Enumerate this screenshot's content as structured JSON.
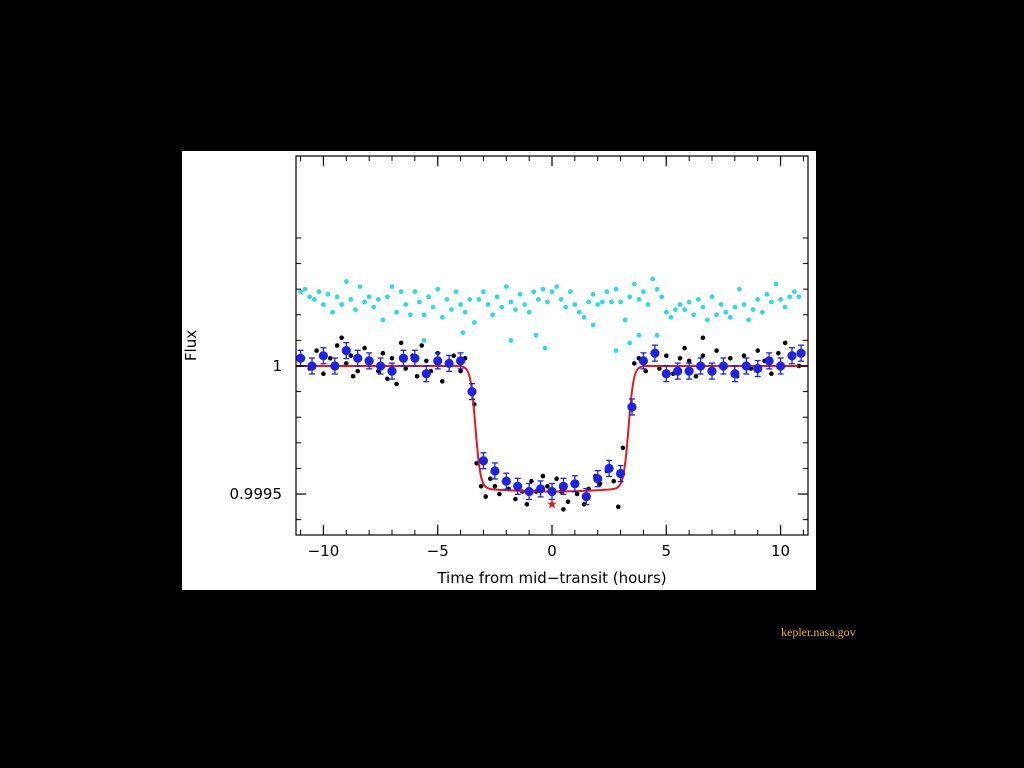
{
  "credit": "kepler.nasa.gov",
  "colors": {
    "background": "#000000",
    "panel": "#ffffff",
    "model": "#e31a1c",
    "binned": "#1f23e0",
    "unbinned": "#000000",
    "offset_series": "#2fd9e6",
    "star_marker": "#e31a1c",
    "credit_text": "#f2b21c"
  },
  "chart_data": {
    "type": "scatter",
    "title": "",
    "xlabel": "Time from mid−transit (hours)",
    "ylabel": "Flux",
    "xlim": [
      -11.2,
      11.2
    ],
    "ylim": [
      0.99934,
      1.00082
    ],
    "xticks": [
      -10,
      -5,
      0,
      5,
      10
    ],
    "xtick_labels": [
      "−10",
      "−5",
      "0",
      "5",
      "10"
    ],
    "yticks": [
      1,
      0.9995
    ],
    "ytick_labels": [
      "1",
      "0.9995"
    ],
    "grid": false,
    "legend": "none",
    "series": [
      {
        "kind": "offset_points",
        "points": [
          [
            -11.0,
            1.00029
          ],
          [
            -10.8,
            1.0003
          ],
          [
            -10.6,
            1.00027
          ],
          [
            -10.4,
            1.00026
          ],
          [
            -10.2,
            1.00029
          ],
          [
            -10.0,
            1.00024
          ],
          [
            -9.8,
            1.00028
          ],
          [
            -9.6,
            1.00021
          ],
          [
            -9.4,
            1.00027
          ],
          [
            -9.2,
            1.00024
          ],
          [
            -9.0,
            1.00033
          ],
          [
            -8.8,
            1.00026
          ],
          [
            -8.6,
            1.00022
          ],
          [
            -8.4,
            1.00031
          ],
          [
            -8.2,
            1.00025
          ],
          [
            -8.0,
            1.00027
          ],
          [
            -7.8,
            1.00023
          ],
          [
            -7.6,
            1.00026
          ],
          [
            -7.4,
            1.00018
          ],
          [
            -7.2,
            1.00027
          ],
          [
            -7.0,
            1.00031
          ],
          [
            -6.8,
            1.00021
          ],
          [
            -6.6,
            1.00029
          ],
          [
            -6.4,
            1.00024
          ],
          [
            -6.2,
            1.0002
          ],
          [
            -6.0,
            1.00029
          ],
          [
            -5.8,
            1.00025
          ],
          [
            -5.6,
            1.0002
          ],
          [
            -5.4,
            1.00027
          ],
          [
            -5.2,
            1.00023
          ],
          [
            -5.0,
            1.0003
          ],
          [
            -4.8,
            1.00019
          ],
          [
            -4.6,
            1.00026
          ],
          [
            -4.4,
            1.00022
          ],
          [
            -4.2,
            1.00029
          ],
          [
            -4.0,
            1.00024
          ],
          [
            -3.8,
            1.00021
          ],
          [
            -3.6,
            1.00026
          ],
          [
            -3.4,
            1.00017
          ],
          [
            -3.2,
            1.00026
          ],
          [
            -3.0,
            1.00029
          ],
          [
            -2.8,
            1.00024
          ],
          [
            -2.6,
            1.0002
          ],
          [
            -2.4,
            1.00027
          ],
          [
            -2.2,
            1.00023
          ],
          [
            -2.0,
            1.00031
          ],
          [
            -1.8,
            1.00025
          ],
          [
            -1.6,
            1.00022
          ],
          [
            -1.4,
            1.00028
          ],
          [
            -1.2,
            1.00024
          ],
          [
            -1.0,
            1.00021
          ],
          [
            -0.8,
            1.00029
          ],
          [
            -0.6,
            1.00026
          ],
          [
            -0.4,
            1.0003
          ],
          [
            -0.2,
            1.00025
          ],
          [
            0.0,
            1.00029
          ],
          [
            0.2,
            1.00031
          ],
          [
            0.4,
            1.00026
          ],
          [
            0.6,
            1.00023
          ],
          [
            0.8,
            1.00029
          ],
          [
            1.0,
            1.00024
          ],
          [
            1.2,
            1.00021
          ],
          [
            1.4,
            1.00019
          ],
          [
            1.6,
            1.00025
          ],
          [
            1.8,
            1.00028
          ],
          [
            2.0,
            1.00024
          ],
          [
            2.2,
            1.00025
          ],
          [
            2.4,
            1.00029
          ],
          [
            2.6,
            1.00025
          ],
          [
            2.8,
            1.0003
          ],
          [
            3.0,
            1.00025
          ],
          [
            3.2,
            1.00018
          ],
          [
            3.4,
            1.00027
          ],
          [
            3.6,
            1.00032
          ],
          [
            3.8,
            1.00026
          ],
          [
            4.0,
            1.00029
          ],
          [
            4.2,
            1.00024
          ],
          [
            4.4,
            1.00034
          ],
          [
            4.6,
            1.0003
          ],
          [
            4.8,
            1.00027
          ],
          [
            5.0,
            1.00021
          ],
          [
            5.2,
            1.00019
          ],
          [
            5.4,
            1.00022
          ],
          [
            5.6,
            1.00024
          ],
          [
            5.8,
            1.00022
          ],
          [
            6.0,
            1.00025
          ],
          [
            6.2,
            1.0002
          ],
          [
            6.4,
            1.00026
          ],
          [
            6.6,
            1.00023
          ],
          [
            6.8,
            1.00018
          ],
          [
            7.0,
            1.00027
          ],
          [
            7.2,
            1.0002
          ],
          [
            7.4,
            1.00024
          ],
          [
            7.6,
            1.00021
          ],
          [
            7.8,
            1.00019
          ],
          [
            8.0,
            1.00023
          ],
          [
            8.2,
            1.0003
          ],
          [
            8.4,
            1.00024
          ],
          [
            8.6,
            1.00018
          ],
          [
            8.8,
            1.00022
          ],
          [
            9.0,
            1.00026
          ],
          [
            9.2,
            1.00021
          ],
          [
            9.4,
            1.00028
          ],
          [
            9.6,
            1.00025
          ],
          [
            9.8,
            1.00032
          ],
          [
            10.0,
            1.00026
          ],
          [
            10.2,
            1.00023
          ],
          [
            10.4,
            1.00027
          ],
          [
            10.6,
            1.00029
          ],
          [
            10.8,
            1.00027
          ],
          [
            -5.6,
            1.0001
          ],
          [
            -1.8,
            1.0001
          ],
          [
            -0.3,
            1.00007
          ],
          [
            2.8,
            1.00006
          ],
          [
            3.4,
            1.00009
          ],
          [
            3.8,
            1.00012
          ],
          [
            -3.9,
            1.00013
          ],
          [
            4.6,
            1.00012
          ],
          [
            1.8,
            1.00016
          ],
          [
            -0.7,
            1.00012
          ]
        ]
      },
      {
        "kind": "unbinned_points",
        "points": [
          [
            -10.9,
            1.00003
          ],
          [
            -10.6,
            0.99999
          ],
          [
            -10.3,
            1.00006
          ],
          [
            -10.0,
            0.99997
          ],
          [
            -9.7,
            1.00003
          ],
          [
            -9.4,
            1.00008
          ],
          [
            -9.2,
            1.00011
          ],
          [
            -9.0,
            1.00001
          ],
          [
            -8.8,
            1.00004
          ],
          [
            -8.5,
            0.99998
          ],
          [
            -8.2,
            1.00007
          ],
          [
            -7.9,
            1.00002
          ],
          [
            -7.6,
            0.99998
          ],
          [
            -7.4,
            1.00005
          ],
          [
            -7.2,
            0.99995
          ],
          [
            -7.0,
            1.00003
          ],
          [
            -6.8,
            0.99993
          ],
          [
            -6.6,
            1.00009
          ],
          [
            -6.4,
            0.99999
          ],
          [
            -6.1,
            1.00004
          ],
          [
            -5.9,
            0.99996
          ],
          [
            -5.7,
            1.00008
          ],
          [
            -5.5,
            1.00002
          ],
          [
            -5.3,
            0.99998
          ],
          [
            -5.0,
            1.00005
          ],
          [
            -4.8,
            0.99994
          ],
          [
            -4.6,
            1.00001
          ],
          [
            -4.3,
            1.00004
          ],
          [
            -4.0,
            0.99998
          ],
          [
            -3.8,
            1.00003
          ],
          [
            -3.4,
            0.99985
          ],
          [
            -3.3,
            0.99962
          ],
          [
            -3.1,
            0.99953
          ],
          [
            -2.9,
            0.99949
          ],
          [
            -2.7,
            0.99956
          ],
          [
            -2.5,
            0.99953
          ],
          [
            -2.3,
            0.9995
          ],
          [
            -2.1,
            0.99955
          ],
          [
            -1.9,
            0.99952
          ],
          [
            -1.6,
            0.99948
          ],
          [
            -1.3,
            0.99951
          ],
          [
            -1.1,
            0.99946
          ],
          [
            -0.9,
            0.99955
          ],
          [
            -0.7,
            0.99951
          ],
          [
            -0.4,
            0.99957
          ],
          [
            -0.2,
            0.99953
          ],
          [
            0.0,
            0.9995
          ],
          [
            0.2,
            0.99956
          ],
          [
            0.4,
            0.99951
          ],
          [
            0.7,
            0.99947
          ],
          [
            0.9,
            0.99954
          ],
          [
            1.1,
            0.9995
          ],
          [
            1.4,
            0.99946
          ],
          [
            1.6,
            0.99952
          ],
          [
            1.9,
            0.99957
          ],
          [
            2.1,
            0.99954
          ],
          [
            2.4,
            0.99959
          ],
          [
            2.7,
            0.99955
          ],
          [
            2.9,
            0.99945
          ],
          [
            3.1,
            0.99968
          ],
          [
            3.4,
            0.99984
          ],
          [
            3.6,
            1.00001
          ],
          [
            3.8,
            1.00003
          ],
          [
            4.1,
            0.99998
          ],
          [
            4.4,
            1.00005
          ],
          [
            4.7,
            0.99999
          ],
          [
            5.0,
            1.00004
          ],
          [
            5.3,
            0.99997
          ],
          [
            5.6,
            1.00003
          ],
          [
            5.8,
            1.00007
          ],
          [
            6.0,
            1.00002
          ],
          [
            6.3,
            0.99996
          ],
          [
            6.6,
            1.00004
          ],
          [
            6.9,
            0.99998
          ],
          [
            7.2,
            1.00006
          ],
          [
            7.5,
            0.99999
          ],
          [
            7.8,
            1.00003
          ],
          [
            8.1,
            0.99996
          ],
          [
            8.4,
            1.00004
          ],
          [
            8.7,
            0.99999
          ],
          [
            9.0,
            1.00006
          ],
          [
            9.3,
            1.00002
          ],
          [
            9.6,
            0.99997
          ],
          [
            9.9,
            1.00005
          ],
          [
            10.2,
            1.00009
          ],
          [
            10.5,
            1.00003
          ],
          [
            10.8,
            1.0
          ],
          [
            6.6,
            1.00011
          ],
          [
            -8.7,
            0.99996
          ],
          [
            0.5,
            0.99944
          ]
        ]
      },
      {
        "kind": "binned_points",
        "points": [
          [
            -11.0,
            1.00003
          ],
          [
            -10.5,
            1.0
          ],
          [
            -10.0,
            1.00004
          ],
          [
            -9.5,
            1.0
          ],
          [
            -9.0,
            1.00006
          ],
          [
            -8.5,
            1.00003
          ],
          [
            -8.0,
            1.00002
          ],
          [
            -7.5,
            1.0
          ],
          [
            -7.0,
            0.99998
          ],
          [
            -6.5,
            1.00003
          ],
          [
            -6.0,
            1.00003
          ],
          [
            -5.5,
            0.99997
          ],
          [
            -5.0,
            1.00002
          ],
          [
            -4.5,
            1.00001
          ],
          [
            -4.0,
            1.00002
          ],
          [
            -3.5,
            0.9999
          ],
          [
            -3.0,
            0.99963
          ],
          [
            -2.5,
            0.99959
          ],
          [
            -2.0,
            0.99955
          ],
          [
            -1.5,
            0.99953
          ],
          [
            -1.0,
            0.99951
          ],
          [
            -0.5,
            0.99952
          ],
          [
            0.0,
            0.99951
          ],
          [
            0.5,
            0.99953
          ],
          [
            1.0,
            0.99954
          ],
          [
            1.5,
            0.99949
          ],
          [
            2.0,
            0.99956
          ],
          [
            2.5,
            0.9996
          ],
          [
            3.0,
            0.99958
          ],
          [
            3.5,
            0.99984
          ],
          [
            4.0,
            1.00002
          ],
          [
            4.5,
            1.00005
          ],
          [
            5.0,
            0.99997
          ],
          [
            5.5,
            0.99998
          ],
          [
            6.0,
            0.99998
          ],
          [
            6.5,
            1.0
          ],
          [
            7.0,
            0.99998
          ],
          [
            7.5,
            1.0
          ],
          [
            8.0,
            0.99997
          ],
          [
            8.5,
            1.0
          ],
          [
            9.0,
            0.99999
          ],
          [
            9.5,
            1.00002
          ],
          [
            10.0,
            1.0
          ],
          [
            10.5,
            1.00004
          ],
          [
            10.9,
            1.00005
          ]
        ]
      }
    ],
    "model_curve": {
      "baseline": 1.0,
      "depth": 0.00049,
      "ingress_center": -3.35,
      "egress_center": 3.35,
      "edge_width": 0.11,
      "limb_darkening": 1.2e-06
    },
    "star_marker": {
      "x": 0.0,
      "y": 0.99946
    }
  }
}
